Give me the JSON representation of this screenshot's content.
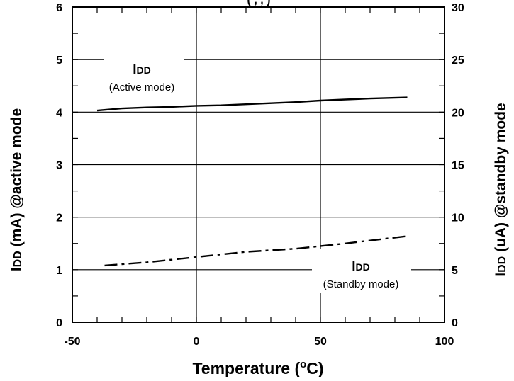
{
  "chart_data": {
    "type": "line",
    "top_title_fragment": "(                    ,                         ,               )",
    "xlabel_main": "Temperature (",
    "xlabel_sup": "o",
    "xlabel_tail": "C)",
    "ylabel_left_sym": "I",
    "ylabel_left_sub": "DD",
    "ylabel_left_rest": " (mA) @active mode",
    "ylabel_right_sym": "I",
    "ylabel_right_sub": "DD",
    "ylabel_right_rest": " (uA) @standby mode",
    "xlim": [
      -50,
      100
    ],
    "xticks": [
      "-50",
      "0",
      "50",
      "100"
    ],
    "ylim_left": [
      0,
      6
    ],
    "yticks_left": [
      "0",
      "1",
      "2",
      "3",
      "4",
      "5",
      "6"
    ],
    "ylim_right": [
      0,
      30
    ],
    "yticks_right": [
      "0",
      "5",
      "10",
      "15",
      "20",
      "25",
      "30"
    ],
    "grid": true,
    "series": [
      {
        "name": "Active mode",
        "axis": "left",
        "style": "solid",
        "x": [
          -40,
          -30,
          -20,
          -10,
          0,
          10,
          20,
          30,
          40,
          50,
          60,
          70,
          85
        ],
        "y": [
          4.03,
          4.07,
          4.09,
          4.1,
          4.12,
          4.13,
          4.15,
          4.17,
          4.19,
          4.22,
          4.24,
          4.26,
          4.28
        ]
      },
      {
        "name": "Standby mode",
        "axis": "right",
        "style": "dashdot",
        "x": [
          -37,
          -20,
          0,
          20,
          40,
          60,
          85
        ],
        "y": [
          5.4,
          5.7,
          6.2,
          6.7,
          7.0,
          7.5,
          8.2
        ]
      }
    ],
    "annotations": [
      {
        "main_sym": "I",
        "main_sub": "DD",
        "sub": "(Active mode)"
      },
      {
        "main_sym": "I",
        "main_sub": "DD",
        "sub": "(Standby mode)"
      }
    ]
  }
}
